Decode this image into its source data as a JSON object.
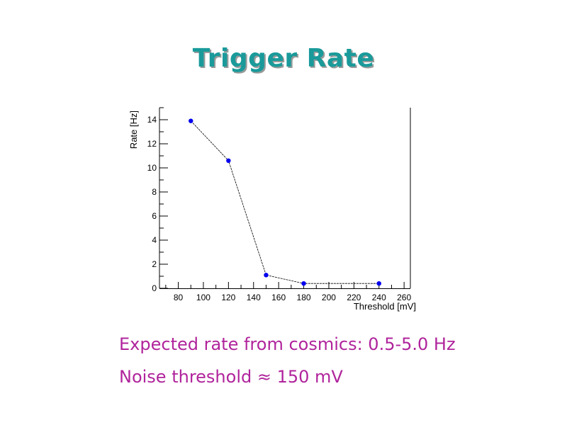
{
  "slide": {
    "title": "Trigger Rate",
    "notes": [
      "Expected rate from cosmics: 0.5-5.0 Hz",
      "Noise threshold ≈ 150 mV"
    ]
  },
  "colors": {
    "title": "#1a9a9a",
    "title_shadow": "#9a9a9a",
    "note_text": "#b0249c",
    "markers": "#0000ee",
    "line": "#000000"
  },
  "chart_data": {
    "type": "line",
    "title": "",
    "xlabel": "Threshold [mV]",
    "ylabel": "Rate [Hz]",
    "xlim": [
      65,
      265
    ],
    "ylim": [
      0,
      15
    ],
    "x_ticks": [
      80,
      100,
      120,
      140,
      160,
      180,
      200,
      220,
      240,
      260
    ],
    "y_ticks": [
      0,
      2,
      4,
      6,
      8,
      10,
      12,
      14
    ],
    "grid": false,
    "legend": "none",
    "series": [
      {
        "x": [
          90,
          120,
          150,
          180,
          240
        ],
        "y": [
          13.9,
          10.6,
          1.1,
          0.4,
          0.4
        ]
      }
    ]
  }
}
